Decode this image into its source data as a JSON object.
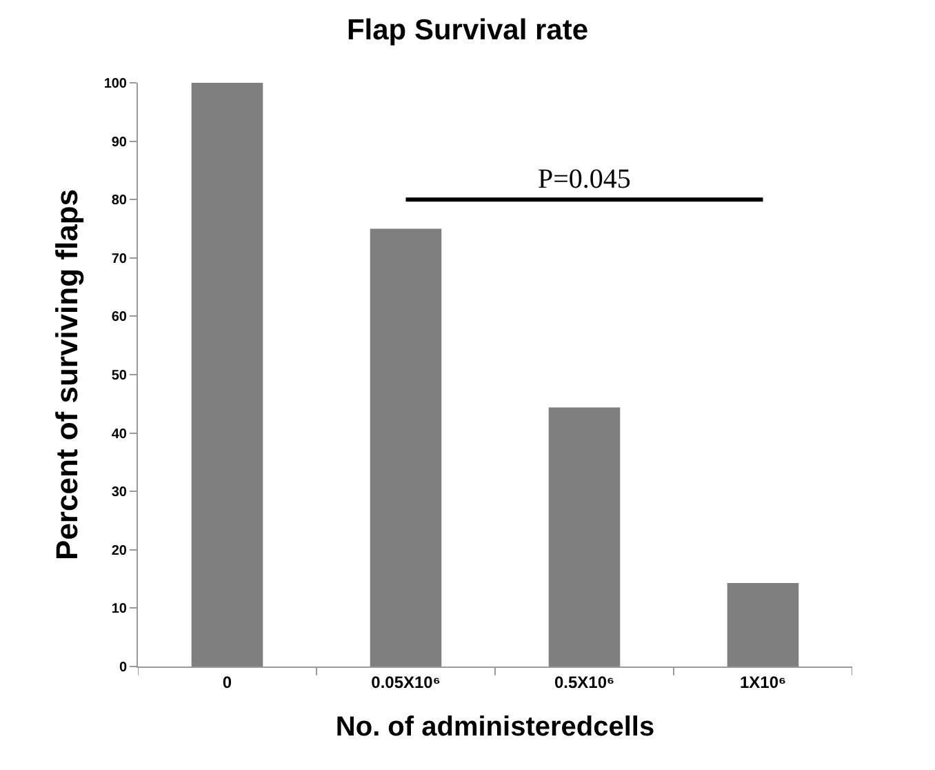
{
  "chart_data": {
    "type": "bar",
    "title": "Flap Survival rate",
    "xlabel": "No. of administeredcells",
    "ylabel": "Percent of surviving flaps",
    "categories": [
      "0",
      "0.05X10⁶",
      "0.5X10⁶",
      "1X10⁶"
    ],
    "values": [
      100,
      75,
      44.4,
      14.3
    ],
    "color": "#7f7f7f",
    "ylim": [
      0,
      100
    ],
    "yticks": [
      0,
      10,
      20,
      30,
      40,
      50,
      60,
      70,
      80,
      90,
      100
    ],
    "annotations": [
      "P=0.045"
    ]
  }
}
